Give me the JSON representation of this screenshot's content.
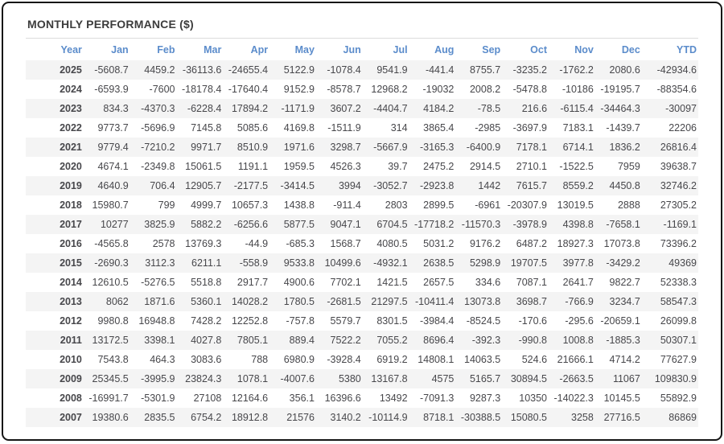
{
  "title": "MONTHLY PERFORMANCE ($)",
  "colors": {
    "header_blue": "#5b8ccb",
    "negative_red": "#f9716d",
    "positive_text": "#47474b",
    "stripe_gray": "#f4f4f4",
    "frame_border": "#161616"
  },
  "chart_data": {
    "type": "table",
    "title": "MONTHLY PERFORMANCE ($)",
    "columns": [
      "Year",
      "Jan",
      "Feb",
      "Mar",
      "Apr",
      "May",
      "Jun",
      "Jul",
      "Aug",
      "Sep",
      "Oct",
      "Nov",
      "Dec",
      "YTD"
    ],
    "rows": [
      {
        "year": "2025",
        "values": [
          "-5608.7",
          "4459.2",
          "-36113.6",
          "-24655.4",
          "5122.9",
          "-1078.4",
          "9541.9",
          "-441.4",
          "8755.7",
          "-3235.2",
          "-1762.2",
          "2080.6",
          "-42934.6"
        ]
      },
      {
        "year": "2024",
        "values": [
          "-6593.9",
          "-7600",
          "-18178.4",
          "-17640.4",
          "9152.9",
          "-8578.7",
          "12968.2",
          "-19032",
          "2008.2",
          "-5478.8",
          "-10186",
          "-19195.7",
          "-88354.6"
        ]
      },
      {
        "year": "2023",
        "values": [
          "834.3",
          "-4370.3",
          "-6228.4",
          "17894.2",
          "-1171.9",
          "3607.2",
          "-4404.7",
          "4184.2",
          "-78.5",
          "216.6",
          "-6115.4",
          "-34464.3",
          "-30097"
        ]
      },
      {
        "year": "2022",
        "values": [
          "9773.7",
          "-5696.9",
          "7145.8",
          "5085.6",
          "4169.8",
          "-1511.9",
          "314",
          "3865.4",
          "-2985",
          "-3697.9",
          "7183.1",
          "-1439.7",
          "22206"
        ]
      },
      {
        "year": "2021",
        "values": [
          "9779.4",
          "-7210.2",
          "9971.7",
          "8510.9",
          "1971.6",
          "3298.7",
          "-5667.9",
          "-3165.3",
          "-6400.9",
          "7178.1",
          "6714.1",
          "1836.2",
          "26816.4"
        ]
      },
      {
        "year": "2020",
        "values": [
          "4674.1",
          "-2349.8",
          "15061.5",
          "1191.1",
          "1959.5",
          "4526.3",
          "39.7",
          "2475.2",
          "2914.5",
          "2710.1",
          "-1522.5",
          "7959",
          "39638.7"
        ]
      },
      {
        "year": "2019",
        "values": [
          "4640.9",
          "706.4",
          "12905.7",
          "-2177.5",
          "-3414.5",
          "3994",
          "-3052.7",
          "-2923.8",
          "1442",
          "7615.7",
          "8559.2",
          "4450.8",
          "32746.2"
        ]
      },
      {
        "year": "2018",
        "values": [
          "15980.7",
          "799",
          "4999.7",
          "10657.3",
          "1438.8",
          "-911.4",
          "2803",
          "2899.5",
          "-6961",
          "-20307.9",
          "13019.5",
          "2888",
          "27305.2"
        ]
      },
      {
        "year": "2017",
        "values": [
          "10277",
          "3825.9",
          "5882.2",
          "-6256.6",
          "5877.5",
          "9047.1",
          "6704.5",
          "-17718.2",
          "-11570.3",
          "-3978.9",
          "4398.8",
          "-7658.1",
          "-1169.1"
        ]
      },
      {
        "year": "2016",
        "values": [
          "-4565.8",
          "2578",
          "13769.3",
          "-44.9",
          "-685.3",
          "1568.7",
          "4080.5",
          "5031.2",
          "9176.2",
          "6487.2",
          "18927.3",
          "17073.8",
          "73396.2"
        ]
      },
      {
        "year": "2015",
        "values": [
          "-2690.3",
          "3112.3",
          "6211.1",
          "-558.9",
          "9533.8",
          "10499.6",
          "-4932.1",
          "2638.5",
          "5298.9",
          "19707.5",
          "3977.8",
          "-3429.2",
          "49369"
        ]
      },
      {
        "year": "2014",
        "values": [
          "12610.5",
          "-5276.5",
          "5518.8",
          "2917.7",
          "4900.6",
          "7702.1",
          "1421.5",
          "2657.5",
          "334.6",
          "7087.1",
          "2641.7",
          "9822.7",
          "52338.3"
        ]
      },
      {
        "year": "2013",
        "values": [
          "8062",
          "1871.6",
          "5360.1",
          "14028.2",
          "1780.5",
          "-2681.5",
          "21297.5",
          "-10411.4",
          "13073.8",
          "3698.7",
          "-766.9",
          "3234.7",
          "58547.3"
        ]
      },
      {
        "year": "2012",
        "values": [
          "9980.8",
          "16948.8",
          "7428.2",
          "12252.8",
          "-757.8",
          "5579.7",
          "8301.5",
          "-3984.4",
          "-8524.5",
          "-170.6",
          "-295.6",
          "-20659.1",
          "26099.8"
        ]
      },
      {
        "year": "2011",
        "values": [
          "13172.5",
          "3398.1",
          "4027.8",
          "7805.1",
          "889.4",
          "7522.2",
          "7055.2",
          "8696.4",
          "-392.3",
          "-990.8",
          "1008.8",
          "-1885.3",
          "50307.1"
        ]
      },
      {
        "year": "2010",
        "values": [
          "7543.8",
          "464.3",
          "3083.6",
          "788",
          "6980.9",
          "-3928.4",
          "6919.2",
          "14808.1",
          "14063.5",
          "524.6",
          "21666.1",
          "4714.2",
          "77627.9"
        ]
      },
      {
        "year": "2009",
        "values": [
          "25345.5",
          "-3995.9",
          "23824.3",
          "1078.1",
          "-4007.6",
          "5380",
          "13167.8",
          "4575",
          "5165.7",
          "30894.5",
          "-2663.5",
          "11067",
          "109830.9"
        ]
      },
      {
        "year": "2008",
        "values": [
          "-16991.7",
          "-5301.9",
          "27108",
          "12164.6",
          "356.1",
          "16396.6",
          "13492",
          "-7091.3",
          "9287.3",
          "10350",
          "-14022.3",
          "10145.5",
          "55892.9"
        ]
      },
      {
        "year": "2007",
        "values": [
          "19380.6",
          "2835.5",
          "6754.2",
          "18912.8",
          "21576",
          "3140.2",
          "-10114.9",
          "8718.1",
          "-30388.5",
          "15080.5",
          "3258",
          "27716.5",
          "86869"
        ]
      }
    ]
  }
}
